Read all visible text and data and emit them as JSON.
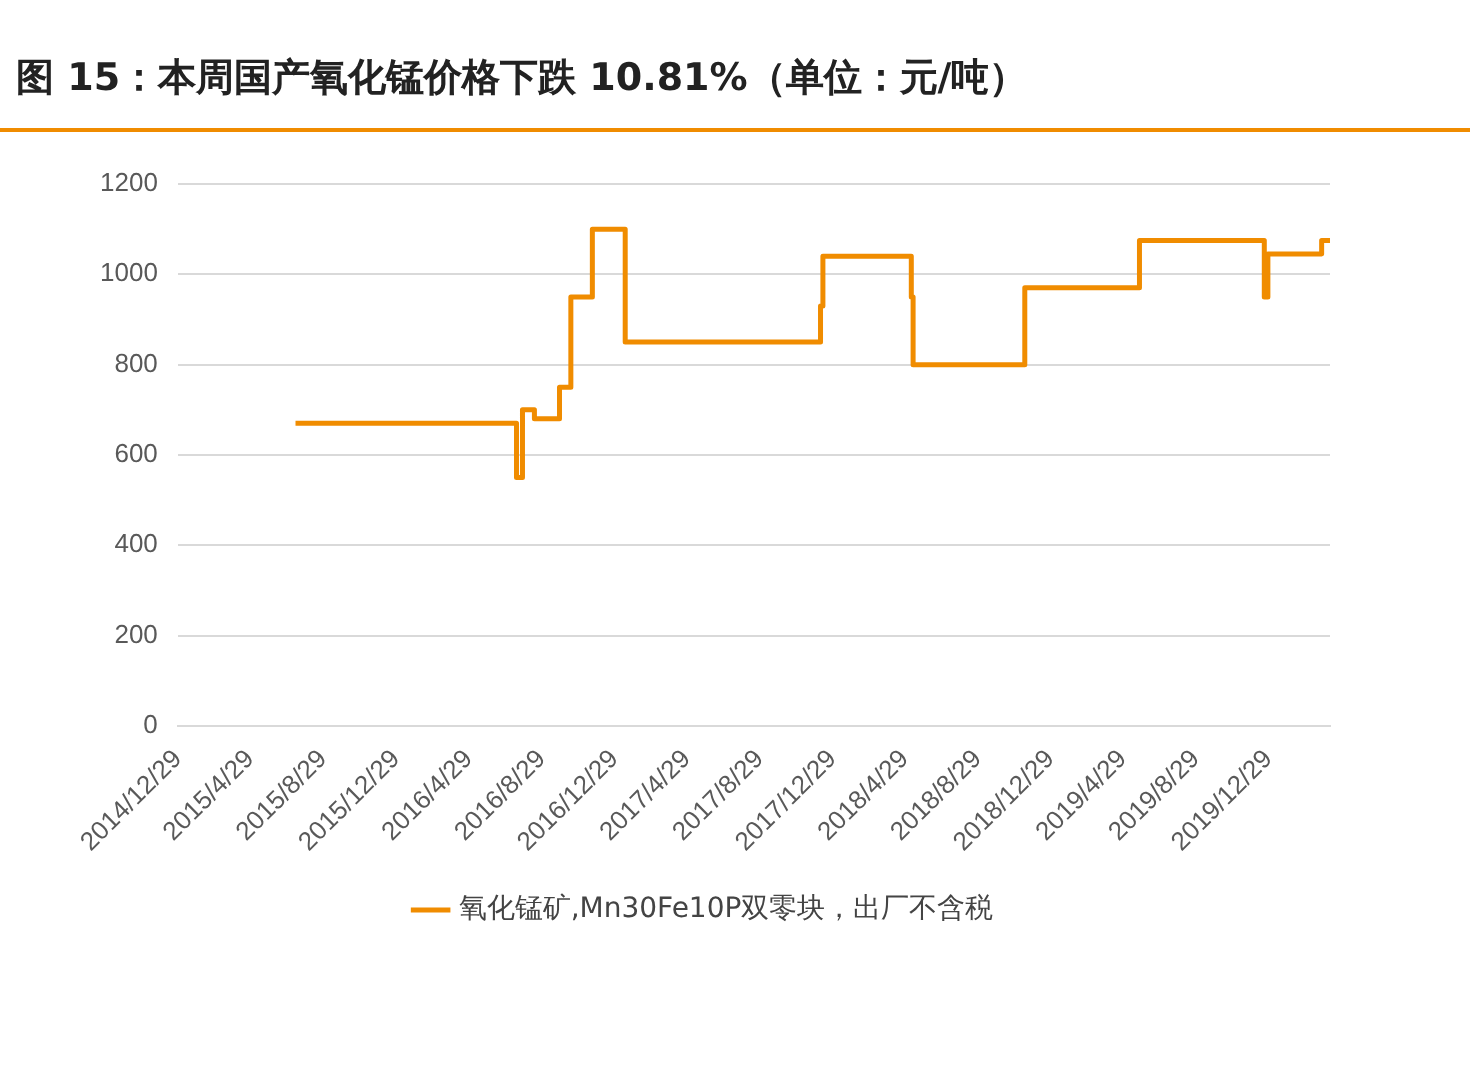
{
  "chart_data": {
    "type": "step",
    "title": "图 15：本周国产氧化锰价格下跌 10.81%（单位：元/吨）",
    "x": [
      "2015-07-14",
      "2016-07-18",
      "2016-07-28",
      "2016-08-17",
      "2016-09-28",
      "2016-10-17",
      "2016-11-22",
      "2017-01-16",
      "2017-12-09",
      "2017-12-13",
      "2018-05-10",
      "2018-05-13",
      "2018-11-16",
      "2019-05-27",
      "2019-12-22",
      "2019-12-28",
      "2020-03-27",
      "2020-04-10"
    ],
    "series": [
      {
        "name": "氧化锰矿,Mn30Fe10P双零块，出厂不含税",
        "color": "#f08c00",
        "values": [
          670,
          550,
          700,
          680,
          750,
          950,
          1100,
          850,
          930,
          1040,
          950,
          800,
          970,
          1075,
          950,
          1045,
          1075,
          1075
        ]
      }
    ],
    "xlim": [
      "2014-12-29",
      "2020-04-10"
    ],
    "xticks": [
      {
        "value": "2014-12-29",
        "label": "2014/12/29"
      },
      {
        "value": "2015-04-29",
        "label": "2015/4/29"
      },
      {
        "value": "2015-08-29",
        "label": "2015/8/29"
      },
      {
        "value": "2015-12-29",
        "label": "2015/12/29"
      },
      {
        "value": "2016-04-29",
        "label": "2016/4/29"
      },
      {
        "value": "2016-08-29",
        "label": "2016/8/29"
      },
      {
        "value": "2016-12-29",
        "label": "2016/12/29"
      },
      {
        "value": "2017-04-29",
        "label": "2017/4/29"
      },
      {
        "value": "2017-08-29",
        "label": "2017/8/29"
      },
      {
        "value": "2017-12-29",
        "label": "2017/12/29"
      },
      {
        "value": "2018-04-29",
        "label": "2018/4/29"
      },
      {
        "value": "2018-08-29",
        "label": "2018/8/29"
      },
      {
        "value": "2018-12-29",
        "label": "2018/12/29"
      },
      {
        "value": "2019-04-29",
        "label": "2019/4/29"
      },
      {
        "value": "2019-08-29",
        "label": "2019/8/29"
      },
      {
        "value": "2019-12-29",
        "label": "2019/12/29"
      }
    ],
    "ylim": [
      0,
      1200
    ],
    "yticks": [
      0,
      200,
      400,
      600,
      800,
      1000,
      1200
    ],
    "grid": "y",
    "legend": "bottom",
    "marker": "none",
    "line_style": "solid"
  }
}
